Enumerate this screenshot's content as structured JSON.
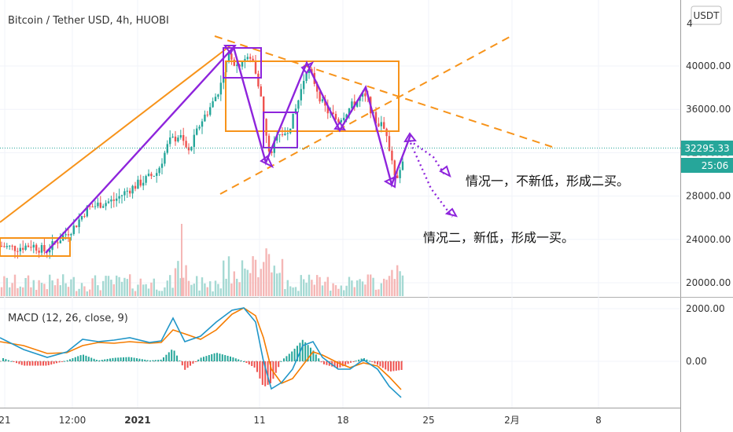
{
  "chart_title": "Bitcoin / Tether USD, 4h, HUOBI",
  "currency_badge": "USDT",
  "price_label": "32295.33",
  "countdown_label": "25:06",
  "top_partial_tick": "4",
  "annotations": {
    "case1": "情况一，不新低，形成二买。",
    "case2": "情况二，新低，形成一买。"
  },
  "macd": {
    "label": "MACD (12, 26, close, 9)",
    "ticks": [
      "2000.00",
      "0.00"
    ]
  },
  "colors": {
    "up": "#26a69a",
    "down": "#ef5350",
    "orange": "#f7931a",
    "purple": "#8e24dc",
    "macd_line": "#2196c8",
    "signal_line": "#f57c00",
    "price_badge": "#26a69a"
  },
  "chart_data": {
    "type": "candlestick",
    "title": "Bitcoin / Tether USD, 4h, HUOBI",
    "y_ticks": [
      40000,
      36000,
      32000,
      28000,
      24000,
      20000
    ],
    "x_ticks": [
      "21",
      "12:00",
      "2021",
      "11",
      "18",
      "25",
      "2月",
      "8"
    ],
    "last_price": 32295.33,
    "ylim": [
      18800,
      45800
    ],
    "macd_ticks": [
      2000,
      0
    ]
  }
}
